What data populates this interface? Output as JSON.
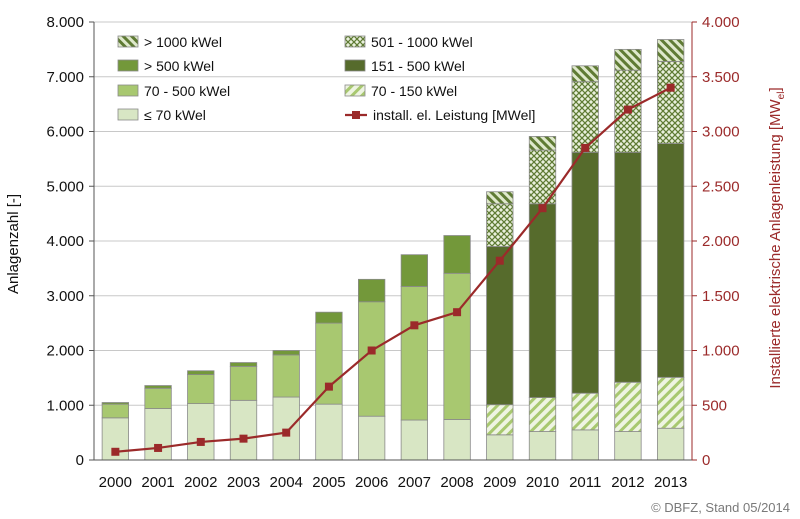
{
  "chart_data": {
    "type": "bar",
    "stacked": true,
    "categories": [
      "2000",
      "2001",
      "2002",
      "2003",
      "2004",
      "2005",
      "2006",
      "2007",
      "2008",
      "2009",
      "2010",
      "2011",
      "2012",
      "2013"
    ],
    "series": [
      {
        "name": "≤ 70 kWel",
        "key": "le70",
        "color": "#d8e6c4",
        "pattern": "solid",
        "values": [
          770,
          940,
          1030,
          1090,
          1150,
          1020,
          800,
          730,
          740,
          460,
          520,
          550,
          520,
          580
        ]
      },
      {
        "name": "70 - 150 kWel",
        "key": "s70_150",
        "color": "#a8c870",
        "pattern": "hatch",
        "values": [
          0,
          0,
          0,
          0,
          0,
          0,
          0,
          0,
          0,
          550,
          620,
          670,
          900,
          930
        ]
      },
      {
        "name": "70 - 500 kWel",
        "key": "s70_500",
        "color": "#a8c870",
        "pattern": "solid",
        "values": [
          250,
          370,
          530,
          620,
          770,
          1480,
          2090,
          2440,
          2670,
          0,
          0,
          0,
          0,
          0
        ]
      },
      {
        "name": "151 - 500 kWel",
        "key": "s151_500",
        "color": "#566b2c",
        "pattern": "solid",
        "values": [
          0,
          0,
          0,
          0,
          0,
          0,
          0,
          0,
          0,
          2890,
          3540,
          4400,
          4200,
          4270
        ]
      },
      {
        "name": "> 500 kWel",
        "key": "gt500",
        "color": "#73983a",
        "pattern": "solid",
        "values": [
          30,
          50,
          70,
          70,
          80,
          200,
          410,
          580,
          690,
          0,
          0,
          0,
          0,
          0
        ]
      },
      {
        "name": "501 - 1000 kWel",
        "key": "s501_1000",
        "color": "#5f7b34",
        "pattern": "crosshatch",
        "values": [
          0,
          0,
          0,
          0,
          0,
          0,
          0,
          0,
          0,
          780,
          980,
          1290,
          1500,
          1500
        ]
      },
      {
        "name": "> 1000 kWel",
        "key": "gt1000",
        "color": "#5f7b34",
        "pattern": "diag",
        "values": [
          0,
          0,
          0,
          0,
          0,
          0,
          0,
          0,
          0,
          220,
          250,
          290,
          380,
          400
        ]
      }
    ],
    "line": {
      "name": "install. el. Leistung [MWel]",
      "color": "#9b2a2a",
      "axis": "right",
      "values": [
        75,
        110,
        165,
        195,
        250,
        670,
        1000,
        1230,
        1350,
        1820,
        2300,
        2850,
        3200,
        3400
      ]
    },
    "ylabel": "Anlagenzahl [-]",
    "ylabel_right_main": "Installierte elektrische Anlagenleistung [MW",
    "ylabel_right_sub": "el",
    "ylabel_right_end": "]",
    "ylim": [
      0,
      8000
    ],
    "ylim_right": [
      0,
      4000
    ],
    "yticks": [
      0,
      1000,
      2000,
      3000,
      4000,
      5000,
      6000,
      7000,
      8000
    ],
    "yticks_right": [
      0,
      500,
      1000,
      1500,
      2000,
      2500,
      3000,
      3500,
      4000
    ],
    "ytick_labels": [
      "0",
      "1.000",
      "2.000",
      "3.000",
      "4.000",
      "5.000",
      "6.000",
      "7.000",
      "8.000"
    ],
    "ytick_labels_right": [
      "0",
      "500",
      "1.000",
      "1.500",
      "2.000",
      "2.500",
      "3.000",
      "3.500",
      "4.000"
    ],
    "grid": true,
    "legend_position": "top-left",
    "legend_order": [
      "gt1000",
      "s501_1000",
      "gt500",
      "s151_500",
      "s70_500",
      "s70_150",
      "le70",
      "line"
    ]
  },
  "credit": "© DBFZ, Stand 05/2014"
}
